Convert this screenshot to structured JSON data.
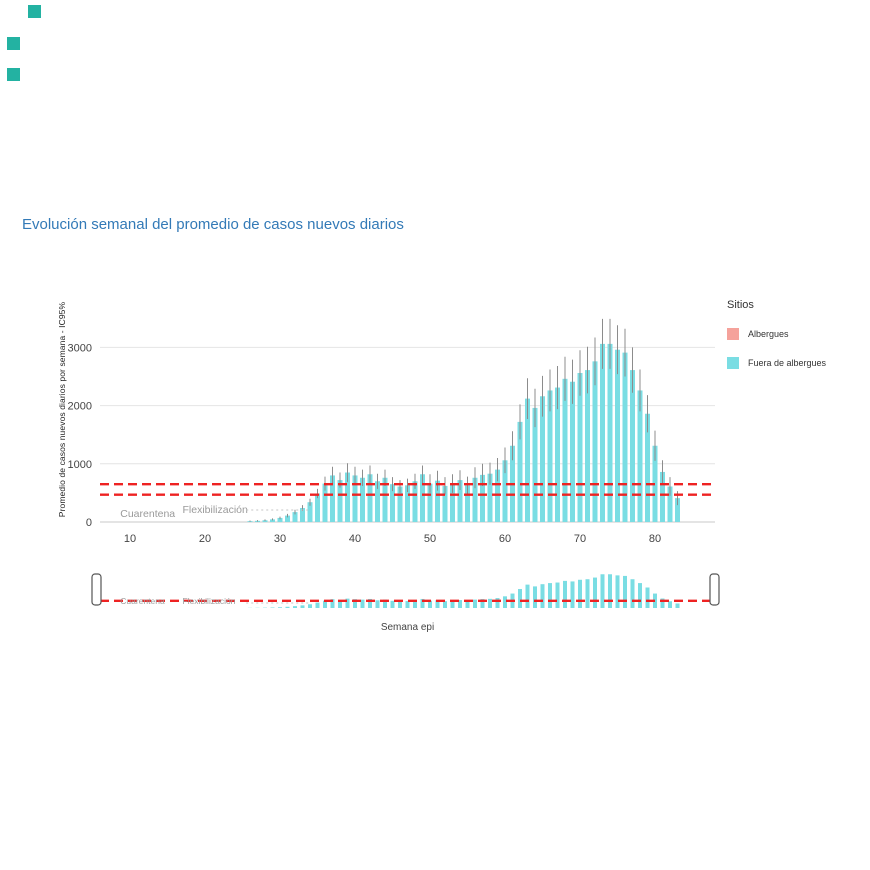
{
  "decor": {
    "square_color": "#23b2a2"
  },
  "legend": {
    "title": "Sitios",
    "items": [
      {
        "label": "Albergues",
        "color": "#f5a29b"
      },
      {
        "label": "Fuera de albergues",
        "color": "#7adde3"
      }
    ]
  },
  "chart_data": {
    "type": "bar",
    "title": "Evolución semanal del promedio de casos nuevos diarios",
    "xlabel": "Semana epi",
    "ylabel": "Promedio de casos nuevos diarios por semana - IC95%",
    "xlim": [
      6,
      88
    ],
    "ylim": [
      0,
      3900
    ],
    "xticks": [
      10,
      20,
      30,
      40,
      50,
      60,
      70,
      80
    ],
    "yticks": [
      0,
      1000,
      2000,
      3000
    ],
    "grid": "horizontal",
    "legend_position": "right",
    "error_bars": "IC95%",
    "range_slider": true,
    "x": [
      26,
      27,
      28,
      29,
      30,
      31,
      32,
      33,
      34,
      35,
      36,
      37,
      38,
      39,
      40,
      41,
      42,
      43,
      44,
      45,
      46,
      47,
      48,
      49,
      50,
      51,
      52,
      53,
      54,
      55,
      56,
      57,
      58,
      59,
      60,
      61,
      62,
      63,
      64,
      65,
      66,
      67,
      68,
      69,
      70,
      71,
      72,
      73,
      74,
      75,
      76,
      77,
      78,
      79,
      80,
      81,
      82,
      83
    ],
    "series": [
      {
        "name": "Albergues",
        "color": "#f5a29b",
        "values": [
          0,
          0,
          0,
          0,
          0,
          0,
          0,
          0,
          0,
          0,
          0,
          0,
          0,
          0,
          0,
          0,
          0,
          0,
          0,
          0,
          0,
          0,
          0,
          0,
          0,
          0,
          0,
          0,
          0,
          0,
          0,
          0,
          0,
          0,
          0,
          0,
          0,
          0,
          0,
          0,
          0,
          0,
          0,
          0,
          0,
          0,
          0,
          0,
          0,
          0,
          0,
          0,
          0,
          0,
          0,
          0,
          0,
          0
        ]
      },
      {
        "name": "Fuera de albergues",
        "color": "#7adde3",
        "values": [
          15,
          20,
          30,
          45,
          70,
          110,
          170,
          240,
          340,
          490,
          660,
          800,
          720,
          850,
          800,
          760,
          820,
          700,
          760,
          650,
          610,
          630,
          700,
          820,
          660,
          710,
          620,
          660,
          720,
          630,
          760,
          810,
          830,
          900,
          1060,
          1310,
          1720,
          2120,
          1960,
          2160,
          2260,
          2310,
          2460,
          2410,
          2560,
          2610,
          2760,
          3060,
          3060,
          2960,
          2910,
          2610,
          2260,
          1860,
          1310,
          860,
          610,
          410
        ],
        "ci_upper": [
          25,
          32,
          45,
          63,
          92,
          140,
          210,
          290,
          400,
          570,
          780,
          950,
          850,
          1010,
          950,
          900,
          970,
          830,
          900,
          770,
          720,
          745,
          830,
          970,
          820,
          880,
          770,
          820,
          890,
          780,
          940,
          1000,
          1020,
          1100,
          1280,
          1560,
          2020,
          2470,
          2290,
          2510,
          2620,
          2680,
          2840,
          2790,
          2950,
          3010,
          3170,
          3490,
          3490,
          3380,
          3320,
          3000,
          2620,
          2180,
          1570,
          1060,
          770,
          530
        ]
      }
    ],
    "reference_lines": [
      {
        "y": 650,
        "color": "#ee2222",
        "style": "dashed"
      },
      {
        "y": 470,
        "color": "#ee2222",
        "style": "dashed"
      }
    ],
    "annotations": [
      {
        "text": "Cuarentena",
        "x": 8.7,
        "y": 86
      },
      {
        "text": "Flexibilización",
        "x": 17,
        "y": 155
      }
    ]
  }
}
